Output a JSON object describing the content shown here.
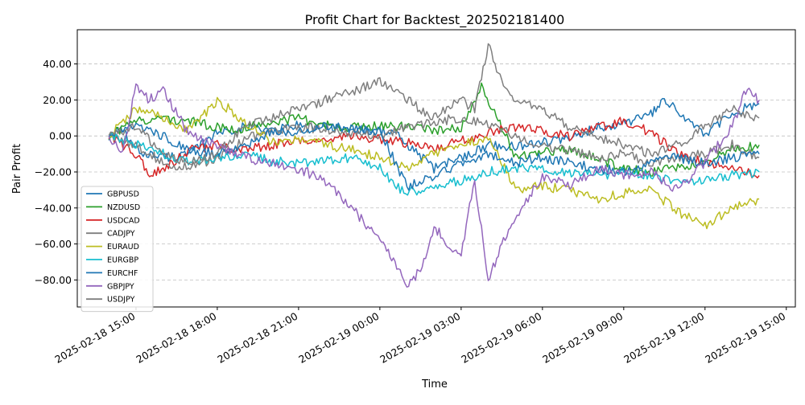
{
  "chart_data": {
    "type": "line",
    "title": "Profit Chart for Backtest_202502181400",
    "xlabel": "Time",
    "ylabel": "Pair Profit",
    "x_type": "datetime",
    "xlim": [
      "2025-02-18 12:50",
      "2025-02-19 15:20"
    ],
    "ylim": [
      -95,
      59
    ],
    "x_ticks": [
      "2025-02-18 15:00",
      "2025-02-18 18:00",
      "2025-02-18 21:00",
      "2025-02-19 00:00",
      "2025-02-19 03:00",
      "2025-02-19 06:00",
      "2025-02-19 09:00",
      "2025-02-19 12:00",
      "2025-02-19 15:00"
    ],
    "y_ticks": [
      40,
      20,
      0,
      -20,
      -40,
      -60,
      -80
    ],
    "y_tick_labels": [
      "40.00",
      "20.00",
      "0.00",
      "−20.00",
      "−40.00",
      "−60.00",
      "−80.00"
    ],
    "grid": "horizontal dashed",
    "legend_position": "lower-left",
    "series": [
      {
        "name": "GBPUSD",
        "color": "#1f77b4",
        "x": [
          "2025-02-18 14:00",
          "2025-02-18 14:30",
          "2025-02-18 15:00",
          "2025-02-18 16:00",
          "2025-02-18 17:00",
          "2025-02-18 18:00",
          "2025-02-18 19:00",
          "2025-02-18 20:00",
          "2025-02-18 21:00",
          "2025-02-18 22:00",
          "2025-02-18 23:00",
          "2025-02-19 00:00",
          "2025-02-19 00:30",
          "2025-02-19 01:00",
          "2025-02-19 02:00",
          "2025-02-19 03:00",
          "2025-02-19 04:00",
          "2025-02-19 05:00",
          "2025-02-19 06:00",
          "2025-02-19 07:00",
          "2025-02-19 08:00",
          "2025-02-19 09:00",
          "2025-02-19 10:00",
          "2025-02-19 10:30",
          "2025-02-19 11:00",
          "2025-02-19 12:00",
          "2025-02-19 13:00",
          "2025-02-19 14:00"
        ],
        "y": [
          0,
          3,
          -8,
          -12,
          -10,
          2,
          5,
          3,
          6,
          5,
          4,
          3,
          2,
          -5,
          -18,
          -12,
          -5,
          -6,
          -3,
          -2,
          5,
          7,
          12,
          19,
          14,
          0,
          13,
          18
        ]
      },
      {
        "name": "NZDUSD",
        "color": "#2ca02c",
        "x": [
          "2025-02-18 14:00",
          "2025-02-18 15:00",
          "2025-02-18 16:00",
          "2025-02-18 17:00",
          "2025-02-18 18:00",
          "2025-02-18 19:00",
          "2025-02-18 20:00",
          "2025-02-18 21:00",
          "2025-02-18 22:00",
          "2025-02-18 23:00",
          "2025-02-19 00:00",
          "2025-02-19 01:00",
          "2025-02-19 02:00",
          "2025-02-19 03:00",
          "2025-02-19 03:45",
          "2025-02-19 04:30",
          "2025-02-19 05:00",
          "2025-02-19 06:00",
          "2025-02-19 07:00",
          "2025-02-19 08:00",
          "2025-02-19 09:00",
          "2025-02-19 10:00",
          "2025-02-19 11:00",
          "2025-02-19 12:00",
          "2025-02-19 13:00",
          "2025-02-19 14:00"
        ],
        "y": [
          0,
          8,
          10,
          8,
          5,
          4,
          8,
          10,
          6,
          5,
          6,
          5,
          3,
          5,
          28,
          5,
          -12,
          -8,
          -8,
          -12,
          -18,
          -20,
          -18,
          -15,
          -8,
          -5
        ]
      },
      {
        "name": "USDCAD",
        "color": "#d62728",
        "x": [
          "2025-02-18 14:00",
          "2025-02-18 15:00",
          "2025-02-18 15:30",
          "2025-02-18 16:00",
          "2025-02-18 17:00",
          "2025-02-18 18:00",
          "2025-02-18 19:00",
          "2025-02-18 20:00",
          "2025-02-18 21:00",
          "2025-02-18 22:00",
          "2025-02-18 23:00",
          "2025-02-19 00:00",
          "2025-02-19 01:00",
          "2025-02-19 02:00",
          "2025-02-19 03:00",
          "2025-02-19 04:00",
          "2025-02-19 05:00",
          "2025-02-19 06:00",
          "2025-02-19 07:00",
          "2025-02-19 08:00",
          "2025-02-19 09:00",
          "2025-02-19 10:00",
          "2025-02-19 11:00",
          "2025-02-19 12:00",
          "2025-02-19 13:00",
          "2025-02-19 14:00"
        ],
        "y": [
          0,
          -10,
          -22,
          -18,
          -8,
          -5,
          -8,
          -5,
          -3,
          -2,
          0,
          -2,
          -4,
          -7,
          -3,
          2,
          5,
          3,
          0,
          5,
          8,
          2,
          -10,
          -15,
          -18,
          -22
        ]
      },
      {
        "name": "CADJPY",
        "color": "#7f7f7f",
        "x": [
          "2025-02-18 14:00",
          "2025-02-18 15:00",
          "2025-02-18 16:00",
          "2025-02-18 17:00",
          "2025-02-18 18:00",
          "2025-02-18 19:00",
          "2025-02-18 20:00",
          "2025-02-18 21:00",
          "2025-02-18 22:00",
          "2025-02-18 23:00",
          "2025-02-19 00:00",
          "2025-02-19 01:00",
          "2025-02-19 02:00",
          "2025-02-19 03:00",
          "2025-02-19 04:00",
          "2025-02-19 05:00",
          "2025-02-19 06:00",
          "2025-02-19 07:00",
          "2025-02-19 08:00",
          "2025-02-19 09:00",
          "2025-02-19 10:00",
          "2025-02-19 11:00",
          "2025-02-19 12:00",
          "2025-02-19 13:00",
          "2025-02-19 14:00"
        ],
        "y": [
          0,
          -5,
          -15,
          -18,
          -12,
          -2,
          3,
          5,
          4,
          2,
          0,
          5,
          8,
          10,
          7,
          0,
          -5,
          -8,
          -12,
          -10,
          -15,
          -12,
          -10,
          -5,
          -12
        ]
      },
      {
        "name": "EURAUD",
        "color": "#bcbd22",
        "x": [
          "2025-02-18 14:00",
          "2025-02-18 15:00",
          "2025-02-18 16:00",
          "2025-02-18 17:00",
          "2025-02-18 18:00",
          "2025-02-18 19:00",
          "2025-02-18 20:00",
          "2025-02-18 21:00",
          "2025-02-18 22:00",
          "2025-02-18 23:00",
          "2025-02-19 00:00",
          "2025-02-19 01:00",
          "2025-02-19 02:00",
          "2025-02-19 03:00",
          "2025-02-19 04:00",
          "2025-02-19 05:00",
          "2025-02-19 06:00",
          "2025-02-19 07:00",
          "2025-02-19 08:00",
          "2025-02-19 09:00",
          "2025-02-19 10:00",
          "2025-02-19 11:00",
          "2025-02-19 12:00",
          "2025-02-19 13:00",
          "2025-02-19 14:00"
        ],
        "y": [
          0,
          15,
          10,
          3,
          20,
          8,
          -3,
          -2,
          -5,
          -8,
          -12,
          -18,
          -10,
          -5,
          0,
          -30,
          -28,
          -30,
          -35,
          -32,
          -30,
          -42,
          -50,
          -40,
          -35
        ]
      },
      {
        "name": "EURGBP",
        "color": "#17becf",
        "x": [
          "2025-02-18 14:00",
          "2025-02-18 15:00",
          "2025-02-18 16:00",
          "2025-02-18 17:00",
          "2025-02-18 18:00",
          "2025-02-18 19:00",
          "2025-02-18 20:00",
          "2025-02-18 21:00",
          "2025-02-18 22:00",
          "2025-02-18 23:00",
          "2025-02-19 00:00",
          "2025-02-19 00:45",
          "2025-02-19 01:30",
          "2025-02-19 02:00",
          "2025-02-19 03:00",
          "2025-02-19 04:00",
          "2025-02-19 05:00",
          "2025-02-19 06:00",
          "2025-02-19 07:00",
          "2025-02-19 08:00",
          "2025-02-19 09:00",
          "2025-02-19 10:00",
          "2025-02-19 11:00",
          "2025-02-19 12:00",
          "2025-02-19 13:00",
          "2025-02-19 14:00"
        ],
        "y": [
          0,
          -5,
          -10,
          -15,
          -12,
          -10,
          -14,
          -15,
          -13,
          -12,
          -18,
          -30,
          -32,
          -28,
          -25,
          -20,
          -18,
          -18,
          -20,
          -22,
          -20,
          -22,
          -26,
          -25,
          -22,
          -20
        ]
      },
      {
        "name": "EURCHF",
        "color": "#1f77b4",
        "x": [
          "2025-02-18 14:00",
          "2025-02-18 15:00",
          "2025-02-18 16:00",
          "2025-02-18 17:00",
          "2025-02-18 18:00",
          "2025-02-18 19:00",
          "2025-02-18 20:00",
          "2025-02-18 21:00",
          "2025-02-18 22:00",
          "2025-02-18 23:00",
          "2025-02-19 00:00",
          "2025-02-19 01:00",
          "2025-02-19 02:00",
          "2025-02-19 03:00",
          "2025-02-19 04:00",
          "2025-02-19 05:00",
          "2025-02-19 06:00",
          "2025-02-19 07:00",
          "2025-02-19 08:00",
          "2025-02-19 09:00",
          "2025-02-19 10:00",
          "2025-02-19 11:00",
          "2025-02-19 12:00",
          "2025-02-19 13:00",
          "2025-02-19 14:00"
        ],
        "y": [
          0,
          5,
          0,
          -8,
          -10,
          -5,
          2,
          3,
          5,
          4,
          3,
          -28,
          -22,
          -15,
          -10,
          -15,
          -12,
          -15,
          -18,
          -20,
          -15,
          -12,
          -15,
          -12,
          -10
        ]
      },
      {
        "name": "GBPJPY",
        "color": "#9467bd",
        "x": [
          "2025-02-18 14:00",
          "2025-02-18 14:30",
          "2025-02-18 15:00",
          "2025-02-18 15:30",
          "2025-02-18 16:00",
          "2025-02-18 17:00",
          "2025-02-18 18:00",
          "2025-02-18 19:00",
          "2025-02-18 20:00",
          "2025-02-18 21:00",
          "2025-02-18 22:00",
          "2025-02-18 23:00",
          "2025-02-18 23:30",
          "2025-02-19 00:00",
          "2025-02-19 00:30",
          "2025-02-19 01:00",
          "2025-02-19 01:30",
          "2025-02-19 02:00",
          "2025-02-19 02:30",
          "2025-02-19 03:00",
          "2025-02-19 03:30",
          "2025-02-19 04:00",
          "2025-02-19 04:30",
          "2025-02-19 05:00",
          "2025-02-19 06:00",
          "2025-02-19 07:00",
          "2025-02-19 08:00",
          "2025-02-19 09:00",
          "2025-02-19 10:00",
          "2025-02-19 11:00",
          "2025-02-19 12:00",
          "2025-02-19 13:00",
          "2025-02-19 13:30",
          "2025-02-19 14:00"
        ],
        "y": [
          0,
          -10,
          28,
          20,
          25,
          0,
          -5,
          -12,
          -15,
          -18,
          -25,
          -40,
          -50,
          -55,
          -70,
          -82,
          -75,
          -50,
          -60,
          -65,
          -25,
          -80,
          -60,
          -45,
          -22,
          -28,
          -18,
          -22,
          -20,
          -30,
          -15,
          5,
          25,
          20
        ]
      },
      {
        "name": "USDJPY",
        "color": "#7f7f7f",
        "x": [
          "2025-02-18 14:00",
          "2025-02-18 15:00",
          "2025-02-18 16:00",
          "2025-02-18 17:00",
          "2025-02-18 18:00",
          "2025-02-18 19:00",
          "2025-02-18 20:00",
          "2025-02-18 21:00",
          "2025-02-18 22:00",
          "2025-02-18 23:00",
          "2025-02-19 00:00",
          "2025-02-19 01:00",
          "2025-02-19 02:00",
          "2025-02-19 03:00",
          "2025-02-19 03:30",
          "2025-02-19 04:00",
          "2025-02-19 04:30",
          "2025-02-19 05:00",
          "2025-02-19 06:00",
          "2025-02-19 07:00",
          "2025-02-19 08:00",
          "2025-02-19 09:00",
          "2025-02-19 10:00",
          "2025-02-19 11:00",
          "2025-02-19 12:00",
          "2025-02-19 13:00",
          "2025-02-19 14:00"
        ],
        "y": [
          0,
          5,
          -10,
          -15,
          -10,
          5,
          10,
          15,
          20,
          25,
          30,
          20,
          10,
          20,
          15,
          50,
          30,
          20,
          15,
          5,
          0,
          -5,
          -10,
          -5,
          5,
          15,
          10
        ]
      }
    ]
  }
}
